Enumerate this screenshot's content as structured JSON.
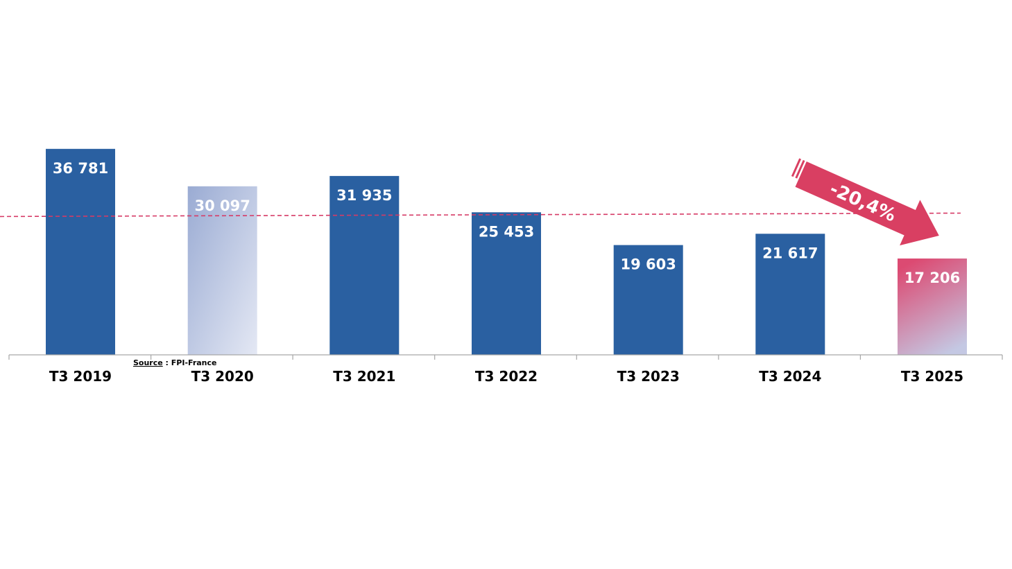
{
  "chart_data": {
    "type": "bar",
    "categories": [
      "T3 2019",
      "T3 2020",
      "T3 2021",
      "T3 2022",
      "T3 2023",
      "T3 2024",
      "T3 2025"
    ],
    "values": [
      36781,
      30097,
      31935,
      25453,
      19603,
      21617,
      17206
    ],
    "value_labels": [
      "36 781",
      "30 097",
      "31 935",
      "25 453",
      "19 603",
      "21 617",
      "17 206"
    ],
    "title": "",
    "xlabel": "",
    "ylabel": "",
    "ylim": [
      0,
      37000
    ],
    "grid": false,
    "reference_line": {
      "style": "dashed",
      "color": "#d63a66",
      "y_start": 24700,
      "y_end": 25300
    },
    "annotation": {
      "text": "-20,4%",
      "shape": "arrow-down-right",
      "color": "#d93f62"
    },
    "colors": {
      "bar": "#2a60a1",
      "bar_2020_light": "#e4e8f4",
      "bar_2020_dark": "#9aabd3",
      "bar_2025_top": "#dc4a72",
      "bar_2025_bottom": "#c4c8e3",
      "axis": "#a6a6a6"
    }
  },
  "source": {
    "label": "Source",
    "text": " : FPI-France"
  }
}
